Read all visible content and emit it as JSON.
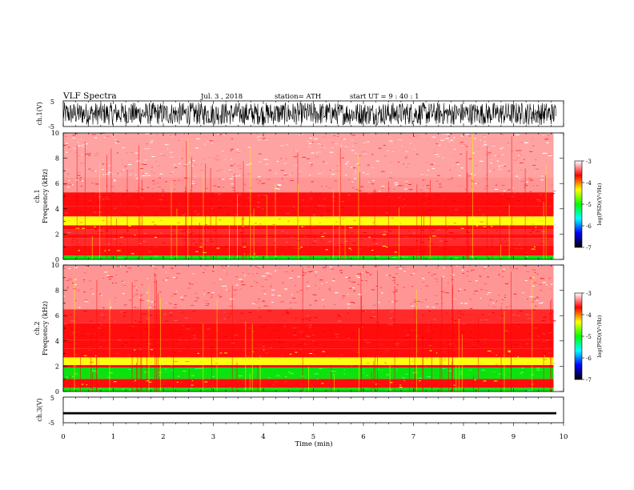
{
  "header": {
    "title": "VLF  Spectra",
    "date": "Jul.  3  , 2018",
    "station": "station= ATH",
    "start": "start  UT  =    9  : 40 : 1"
  },
  "chart_data": [
    {
      "type": "line",
      "name": "ch1-waveform",
      "ylabel": "ch.1(V)",
      "ylim": [
        -5,
        5
      ],
      "yticks": [
        "5",
        "-5"
      ],
      "xlim": [
        0,
        10
      ],
      "envelope": [
        -4.4,
        4.4
      ],
      "color": "#000000"
    },
    {
      "type": "heatmap",
      "name": "ch1-spectrogram",
      "ylabel_top": "ch.1",
      "ylabel": "Frequency  (kHz)",
      "ylim": [
        0,
        10
      ],
      "yticks": [
        "0",
        "2",
        "4",
        "6",
        "8",
        "10"
      ],
      "xlim": [
        0,
        9.8
      ],
      "bands": [
        {
          "f0": 0.0,
          "f1": 0.3,
          "level": 2
        },
        {
          "f0": 0.3,
          "f1": 1.1,
          "level": 4
        },
        {
          "f0": 1.1,
          "f1": 1.7,
          "level": 6
        },
        {
          "f0": 1.7,
          "f1": 2.0,
          "level": 4
        },
        {
          "f0": 2.0,
          "f1": 2.4,
          "level": 6
        },
        {
          "f0": 2.4,
          "f1": 2.7,
          "level": 4
        },
        {
          "f0": 2.7,
          "f1": 3.4,
          "level": 3
        },
        {
          "f0": 3.4,
          "f1": 4.2,
          "level": 5
        },
        {
          "f0": 4.2,
          "f1": 5.3,
          "level": 5
        },
        {
          "f0": 5.3,
          "f1": 6.5,
          "level": 7
        },
        {
          "f0": 6.5,
          "f1": 10.0,
          "level": 8
        }
      ]
    },
    {
      "type": "heatmap",
      "name": "ch2-spectrogram",
      "ylabel_top": "ch.2",
      "ylabel": "Frequency  (kHz)",
      "ylim": [
        0,
        10
      ],
      "yticks": [
        "0",
        "2",
        "4",
        "6",
        "8",
        "10"
      ],
      "xlim": [
        0,
        9.8
      ],
      "bands": [
        {
          "f0": 0.0,
          "f1": 0.3,
          "level": 2
        },
        {
          "f0": 0.3,
          "f1": 1.0,
          "level": 4
        },
        {
          "f0": 1.0,
          "f1": 1.9,
          "level": 2
        },
        {
          "f0": 1.9,
          "f1": 2.1,
          "level": 5
        },
        {
          "f0": 2.1,
          "f1": 2.7,
          "level": 3
        },
        {
          "f0": 2.7,
          "f1": 3.4,
          "level": 4
        },
        {
          "f0": 3.4,
          "f1": 4.1,
          "level": 5
        },
        {
          "f0": 4.1,
          "f1": 5.4,
          "level": 5
        },
        {
          "f0": 5.4,
          "f1": 6.5,
          "level": 6
        },
        {
          "f0": 6.5,
          "f1": 10.0,
          "level": 7
        }
      ]
    },
    {
      "type": "line",
      "name": "ch3-waveform",
      "ylabel": "ch.3(V)",
      "ylim": [
        -5,
        5
      ],
      "yticks": [
        "5",
        "-5"
      ],
      "xlim": [
        0,
        10
      ],
      "envelope": [
        -1.6,
        -1.0
      ],
      "color": "#000000"
    }
  ],
  "xaxis": {
    "label": "Time  (min)",
    "ticks": [
      "0",
      "1",
      "2",
      "3",
      "4",
      "5",
      "6",
      "7",
      "8",
      "9",
      "10"
    ],
    "range": [
      0,
      10
    ]
  },
  "colorbar": {
    "label": "log(PSD)(V²/Hz)",
    "ticks": [
      "-3",
      "-4",
      "-5",
      "-6",
      "-7"
    ],
    "range": [
      -7,
      -3
    ],
    "stops": [
      "#000000",
      "#0000ff",
      "#00ffff",
      "#00ff00",
      "#ffff00",
      "#ff0000",
      "#ffffff"
    ]
  }
}
